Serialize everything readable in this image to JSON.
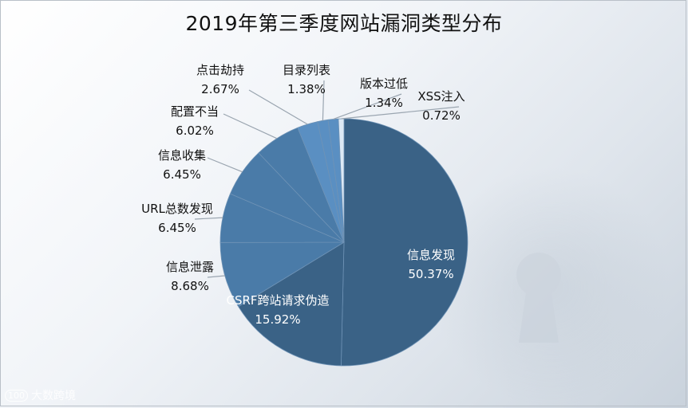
{
  "title": "2019年第三季度网站漏洞类型分布",
  "watermark": {
    "logo": "100",
    "text": "大数跨境"
  },
  "colors": {
    "dark": "#3a6286",
    "mid": "#4a7ba8",
    "light": "#5a8fc2",
    "pale": "#dde9f5"
  },
  "chart_data": {
    "type": "pie",
    "title": "2019年第三季度网站漏洞类型分布",
    "slices": [
      {
        "label": "信息发现",
        "value": 50.37,
        "display": "50.37%"
      },
      {
        "label": "CSRF跨站请求伪造",
        "value": 15.92,
        "display": "15.92%"
      },
      {
        "label": "信息泄露",
        "value": 8.68,
        "display": "8.68%"
      },
      {
        "label": "URL总数发现",
        "value": 6.45,
        "display": "6.45%"
      },
      {
        "label": "信息收集",
        "value": 6.45,
        "display": "6.45%"
      },
      {
        "label": "配置不当",
        "value": 6.02,
        "display": "6.02%"
      },
      {
        "label": "点击劫持",
        "value": 2.67,
        "display": "2.67%"
      },
      {
        "label": "目录列表",
        "value": 1.38,
        "display": "1.38%"
      },
      {
        "label": "版本过低",
        "value": 1.34,
        "display": "1.34%"
      },
      {
        "label": "XSS注入",
        "value": 0.72,
        "display": "0.72%"
      }
    ]
  }
}
